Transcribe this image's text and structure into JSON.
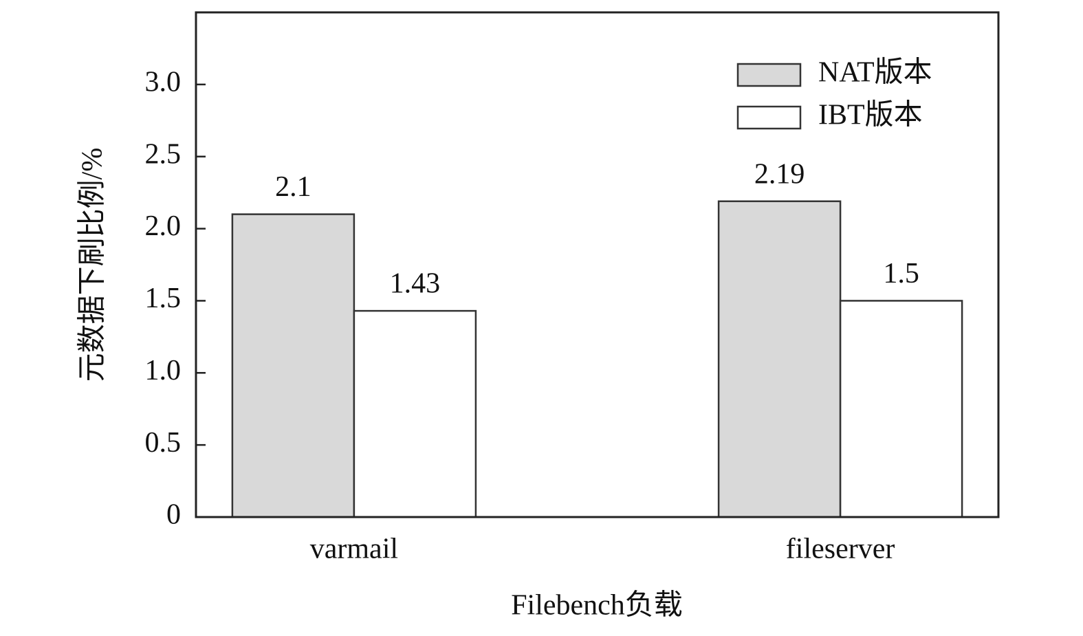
{
  "chart_data": {
    "type": "bar",
    "categories": [
      "varmail",
      "fileserver"
    ],
    "series": [
      {
        "name": "NAT版本",
        "color": "#d9d9d9",
        "values": [
          2.1,
          2.19
        ]
      },
      {
        "name": "IBT版本",
        "color": "#ffffff",
        "values": [
          1.43,
          1.5
        ]
      }
    ],
    "ylim": [
      0,
      3.5
    ],
    "yticks": [
      0,
      0.5,
      {
        "value": 1,
        "label": "1.0"
      },
      1.5,
      {
        "value": 2,
        "label": "2.0"
      },
      2.5,
      {
        "value": 3,
        "label": "3.0"
      }
    ],
    "xlabel": "Filebench负载",
    "ylabel": "元数据下刷比例/%",
    "legend": "upper right"
  }
}
